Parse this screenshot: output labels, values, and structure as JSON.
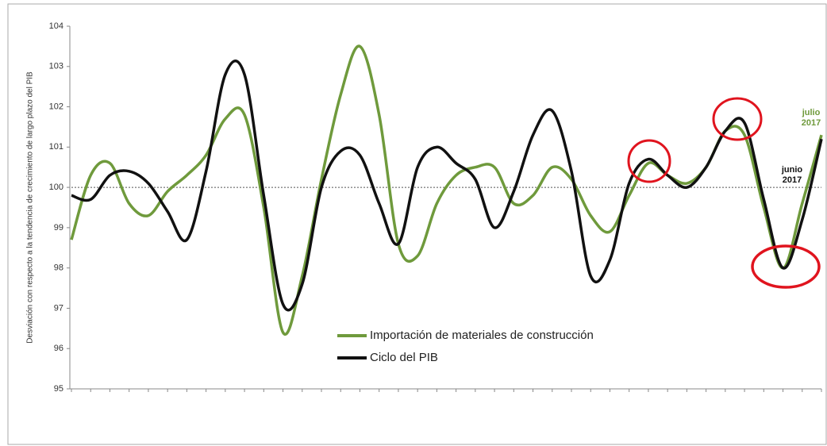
{
  "chart_data": {
    "type": "line",
    "y_label": "Desviación con respecto a la tendencia de crecimiento de largo plazo del PIB",
    "categories": [
      null,
      null,
      null,
      null,
      null,
      null,
      null,
      null,
      null,
      null,
      null,
      null,
      null,
      null,
      null,
      null,
      null,
      null,
      null,
      null,
      null,
      null,
      null,
      null,
      null,
      null,
      null,
      null,
      null,
      null,
      null,
      null,
      null,
      null,
      null,
      null,
      null,
      null,
      null,
      null
    ],
    "series": [
      {
        "name": "Importación de materiales de construcción",
        "color": "#6f9a3c",
        "values": [
          98.7,
          100.3,
          100.6,
          99.6,
          99.3,
          99.9,
          100.3,
          100.8,
          101.7,
          101.8,
          99.5,
          96.4,
          97.8,
          100.2,
          102.3,
          103.5,
          101.8,
          98.6,
          98.3,
          99.6,
          100.3,
          100.5,
          100.5,
          99.6,
          99.8,
          100.5,
          100.2,
          99.3,
          98.9,
          99.8,
          100.6,
          100.3,
          100.1,
          100.5,
          101.4,
          101.3,
          99.5,
          98.0,
          99.6,
          101.3
        ]
      },
      {
        "name": "Ciclo del PIB",
        "color": "#111111",
        "values": [
          99.8,
          99.7,
          100.3,
          100.4,
          100.1,
          99.4,
          98.7,
          100.4,
          102.8,
          102.8,
          99.8,
          97.1,
          97.6,
          100.0,
          100.9,
          100.8,
          99.6,
          98.6,
          100.5,
          101.0,
          100.6,
          100.2,
          99.0,
          99.9,
          101.3,
          101.9,
          100.4,
          97.8,
          98.2,
          100.1,
          100.7,
          100.3,
          100.0,
          100.5,
          101.4,
          101.6,
          99.7,
          98.0,
          99.2,
          101.2
        ]
      }
    ],
    "ylim": [
      95,
      104
    ],
    "yticks": [
      95,
      96,
      97,
      98,
      99,
      100,
      101,
      102,
      103,
      104
    ],
    "reference_line": 100,
    "annotations": [
      {
        "lines": [
          "julio",
          "2017"
        ],
        "color": "#6f9a3c"
      },
      {
        "lines": [
          "junio",
          "2017"
        ],
        "color": "#111111"
      }
    ]
  }
}
